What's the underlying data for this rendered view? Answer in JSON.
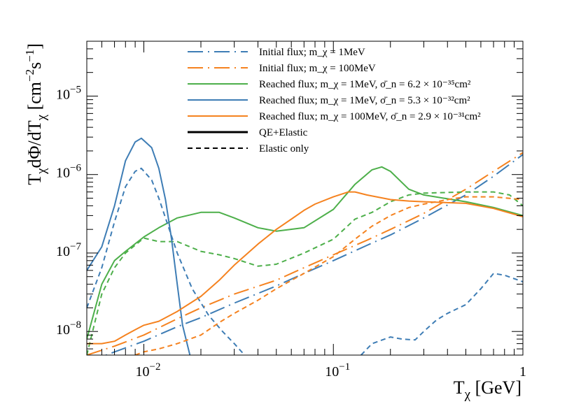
{
  "chart_data": {
    "type": "line",
    "title": "",
    "xlabel": "T_χ [GeV]",
    "ylabel": "T_χ dΦ/dT_χ [cm⁻² s⁻¹]",
    "x_scale": "log",
    "y_scale": "log",
    "xlim": [
      0.005,
      1.0
    ],
    "ylim": [
      5e-09,
      5e-05
    ],
    "x_ticks": [
      {
        "value": 0.01,
        "label": "10",
        "exp": "−2"
      },
      {
        "value": 0.1,
        "label": "10",
        "exp": "−1"
      },
      {
        "value": 1.0,
        "label": "1",
        "exp": ""
      }
    ],
    "y_ticks": [
      {
        "value": 1e-08,
        "label": "10",
        "exp": "−8"
      },
      {
        "value": 1e-07,
        "label": "10",
        "exp": "−7"
      },
      {
        "value": 1e-06,
        "label": "10",
        "exp": "−6"
      },
      {
        "value": 1e-05,
        "label": "10",
        "exp": "−5"
      }
    ],
    "legend": {
      "position": "top-right",
      "entries": [
        {
          "text": "Initial flux; m_χ = 1MeV",
          "color": "#3e7db5",
          "style": "dashdot"
        },
        {
          "text": "Initial flux; m_χ = 100MeV",
          "color": "#f5821f",
          "style": "dashdot"
        },
        {
          "text": "Reached flux; m_χ = 1MeV, σ̄_n = 6.2 × 10⁻³⁵cm²",
          "color": "#4daf4a",
          "style": "solid"
        },
        {
          "text": "Reached flux; m_χ = 1MeV, σ̄_n = 5.3 × 10⁻³²cm²",
          "color": "#3e7db5",
          "style": "solid"
        },
        {
          "text": "Reached flux; m_χ = 100MeV, σ̄_n = 2.9 × 10⁻³¹cm²",
          "color": "#f5821f",
          "style": "solid"
        },
        {
          "text": "QE+Elastic",
          "color": "#000000",
          "style": "solid"
        },
        {
          "text": "Elastic only",
          "color": "#000000",
          "style": "dashed"
        }
      ]
    },
    "series": [
      {
        "name": "Initial flux; m_χ = 1MeV",
        "color": "#3e7db5",
        "style": "dashdot",
        "x": [
          0.005,
          0.007,
          0.01,
          0.015,
          0.02,
          0.03,
          0.05,
          0.07,
          0.1,
          0.15,
          0.2,
          0.3,
          0.5,
          0.7,
          1.0
        ],
        "y": [
          4e-09,
          5.5e-09,
          7.5e-09,
          1.15e-08,
          1.5e-08,
          2.3e-08,
          3.8e-08,
          5.5e-08,
          8e-08,
          1.25e-07,
          1.7e-07,
          2.8e-07,
          5.5e-07,
          9.5e-07,
          1.8e-06
        ]
      },
      {
        "name": "Initial flux; m_χ = 100MeV",
        "color": "#f5821f",
        "style": "dashdot",
        "x": [
          0.005,
          0.007,
          0.01,
          0.015,
          0.02,
          0.03,
          0.05,
          0.07,
          0.1,
          0.15,
          0.2,
          0.3,
          0.5,
          0.7,
          1.0
        ],
        "y": [
          5e-09,
          6.5e-09,
          9e-09,
          1.45e-08,
          2e-08,
          3e-08,
          4.5e-08,
          6.5e-08,
          9.5e-08,
          1.45e-07,
          2e-07,
          3.2e-07,
          6.5e-07,
          1.1e-06,
          1.9e-06
        ]
      },
      {
        "name": "Reached flux; m_χ = 1MeV, σ̄_n = 6.2 × 10⁻³⁵cm² (QE+Elastic)",
        "color": "#4daf4a",
        "style": "solid",
        "x": [
          0.005,
          0.006,
          0.007,
          0.008,
          0.01,
          0.012,
          0.015,
          0.02,
          0.025,
          0.03,
          0.04,
          0.05,
          0.07,
          0.1,
          0.13,
          0.16,
          0.18,
          0.2,
          0.25,
          0.3,
          0.5,
          0.7,
          1.0
        ],
        "y": [
          8e-09,
          4e-08,
          8e-08,
          1.05e-07,
          1.6e-07,
          2.1e-07,
          2.8e-07,
          3.3e-07,
          3.3e-07,
          2.8e-07,
          2.1e-07,
          1.9e-07,
          2.1e-07,
          3.6e-07,
          7.5e-07,
          1.15e-06,
          1.25e-06,
          1.1e-06,
          6.5e-07,
          5.5e-07,
          4.5e-07,
          3.8e-07,
          3e-07
        ]
      },
      {
        "name": "Reached flux; m_χ = 1MeV, σ̄_n = 6.2 × 10⁻³⁵cm² (Elastic only)",
        "color": "#4daf4a",
        "style": "dashed",
        "x": [
          0.005,
          0.006,
          0.007,
          0.008,
          0.01,
          0.012,
          0.015,
          0.02,
          0.025,
          0.03,
          0.04,
          0.05,
          0.07,
          0.1,
          0.13,
          0.16,
          0.2,
          0.25,
          0.3,
          0.5,
          0.7,
          0.85,
          1.0
        ],
        "y": [
          5e-09,
          3e-08,
          6.5e-08,
          1e-07,
          1.55e-07,
          1.4e-07,
          1.4e-07,
          1.05e-07,
          9.5e-08,
          8.5e-08,
          6.8e-08,
          7.2e-08,
          1e-07,
          1.5e-07,
          2.7e-07,
          3.3e-07,
          4.5e-07,
          5.5e-07,
          5.8e-07,
          6e-07,
          6e-07,
          5.5e-07,
          4e-07
        ]
      },
      {
        "name": "Reached flux; m_χ = 1MeV, σ̄_n = 5.3 × 10⁻³²cm² (QE+Elastic)",
        "color": "#3e7db5",
        "style": "solid",
        "x": [
          0.005,
          0.006,
          0.007,
          0.008,
          0.009,
          0.0097,
          0.011,
          0.012,
          0.013,
          0.014,
          0.015,
          0.016,
          0.0175
        ],
        "y": [
          6e-08,
          1.2e-07,
          4e-07,
          1.5e-06,
          2.6e-06,
          2.9e-06,
          2.2e-06,
          1.2e-06,
          4.8e-07,
          1.5e-07,
          4e-08,
          1.2e-08,
          5e-09
        ]
      },
      {
        "name": "Reached flux; m_χ = 1MeV, σ̄_n = 5.3 × 10⁻³²cm² (Elastic only)",
        "color": "#3e7db5",
        "style": "dashed",
        "x": [
          0.005,
          0.006,
          0.007,
          0.008,
          0.009,
          0.0097,
          0.011,
          0.012,
          0.013,
          0.015,
          0.018,
          0.022,
          0.026,
          0.03,
          0.034
        ],
        "y": [
          2e-08,
          6.5e-08,
          2.5e-07,
          7e-07,
          1.1e-06,
          1.2e-06,
          8.5e-07,
          5e-07,
          2.8e-07,
          1e-07,
          3.5e-08,
          1.6e-08,
          1e-08,
          7e-09,
          5e-09
        ]
      },
      {
        "name": "Reached flux; m_χ = 1MeV, σ̄_n = 5.3 × 10⁻³²cm² (Elastic only, high-energy)",
        "color": "#3e7db5",
        "style": "dashed",
        "x": [
          0.14,
          0.16,
          0.2,
          0.23,
          0.27,
          0.3,
          0.35,
          0.4,
          0.5,
          0.6,
          0.7,
          0.8,
          1.0
        ],
        "y": [
          5e-09,
          7e-09,
          8.5e-09,
          8e-09,
          7.8e-09,
          1e-08,
          1.4e-08,
          1.7e-08,
          2.2e-08,
          3.5e-08,
          5.5e-08,
          5.2e-08,
          4.3e-08
        ]
      },
      {
        "name": "Reached flux; m_χ = 100MeV, σ̄_n = 2.9 × 10⁻³¹cm² (QE+Elastic)",
        "color": "#f5821f",
        "style": "solid",
        "x": [
          0.005,
          0.006,
          0.007,
          0.008,
          0.009,
          0.01,
          0.012,
          0.015,
          0.02,
          0.025,
          0.03,
          0.04,
          0.05,
          0.06,
          0.07,
          0.08,
          0.1,
          0.12,
          0.13,
          0.15,
          0.2,
          0.25,
          0.3,
          0.5,
          0.7,
          1.0
        ],
        "y": [
          7e-09,
          7e-09,
          7.5e-09,
          9e-09,
          1.05e-08,
          1.2e-08,
          1.35e-08,
          1.8e-08,
          2.8e-08,
          4.5e-08,
          7e-08,
          1.3e-07,
          2e-07,
          2.7e-07,
          3.5e-07,
          4.2e-07,
          5.2e-07,
          6e-07,
          6e-07,
          5.5e-07,
          4.8e-07,
          4.6e-07,
          4.5e-07,
          4.3e-07,
          3.7e-07,
          2.9e-07
        ]
      },
      {
        "name": "Reached flux; m_χ = 100MeV, σ̄_n = 2.9 × 10⁻³¹cm² (Elastic only)",
        "color": "#f5821f",
        "style": "dashed",
        "x": [
          0.009,
          0.01,
          0.012,
          0.015,
          0.02,
          0.025,
          0.03,
          0.04,
          0.05,
          0.07,
          0.1,
          0.13,
          0.16,
          0.2,
          0.25,
          0.3,
          0.4,
          0.5,
          0.7,
          1.0
        ],
        "y": [
          5e-09,
          5.5e-09,
          6e-09,
          7e-09,
          9e-09,
          1.3e-08,
          1.7e-08,
          2.5e-08,
          3.5e-08,
          5.5e-08,
          9e-08,
          1.5e-07,
          2.2e-07,
          3e-07,
          3.8e-07,
          4.2e-07,
          4.8e-07,
          5.2e-07,
          5.2e-07,
          4.8e-07
        ]
      }
    ]
  }
}
